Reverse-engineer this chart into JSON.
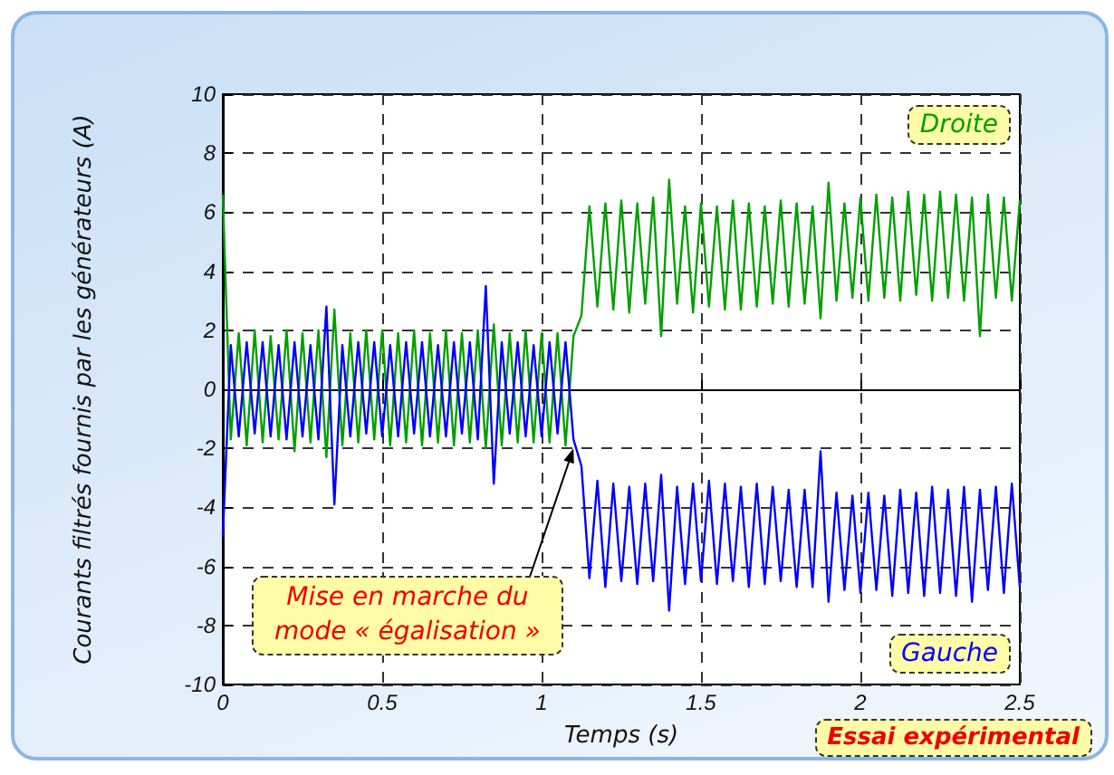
{
  "chart_data": {
    "type": "line",
    "xlabel": "Temps (s)",
    "ylabel": "Courants filtrés fournis par les générateurs (A)",
    "x": [
      0,
      0.025,
      0.05,
      0.075,
      0.1,
      0.125,
      0.15,
      0.175,
      0.2,
      0.225,
      0.25,
      0.275,
      0.3,
      0.325,
      0.35,
      0.375,
      0.4,
      0.425,
      0.45,
      0.475,
      0.5,
      0.525,
      0.55,
      0.575,
      0.6,
      0.625,
      0.65,
      0.675,
      0.7,
      0.725,
      0.75,
      0.775,
      0.8,
      0.825,
      0.85,
      0.875,
      0.9,
      0.925,
      0.95,
      0.975,
      1,
      1.025,
      1.05,
      1.075,
      1.1,
      1.125,
      1.15,
      1.175,
      1.2,
      1.225,
      1.25,
      1.275,
      1.3,
      1.325,
      1.35,
      1.375,
      1.4,
      1.425,
      1.45,
      1.475,
      1.5,
      1.525,
      1.55,
      1.575,
      1.6,
      1.625,
      1.65,
      1.675,
      1.7,
      1.725,
      1.75,
      1.775,
      1.8,
      1.825,
      1.85,
      1.875,
      1.9,
      1.925,
      1.95,
      1.975,
      2,
      2.025,
      2.05,
      2.075,
      2.1,
      2.125,
      2.15,
      2.175,
      2.2,
      2.225,
      2.25,
      2.275,
      2.3,
      2.325,
      2.35,
      2.375,
      2.4,
      2.425,
      2.45,
      2.475,
      2.5
    ],
    "series": [
      {
        "name": "Droite",
        "color": "#00a000",
        "values": [
          6.6,
          -1.7,
          1.9,
          -1.9,
          2.0,
          -1.8,
          1.8,
          -1.7,
          2.0,
          -2.1,
          1.9,
          -1.8,
          2.0,
          -2.3,
          2.7,
          -1.9,
          1.9,
          -1.8,
          2.0,
          -1.7,
          2.0,
          -1.9,
          1.9,
          -1.8,
          2.0,
          -1.9,
          1.9,
          -1.8,
          2.0,
          -1.9,
          1.9,
          -1.8,
          2.0,
          -2.0,
          2.2,
          -1.9,
          1.9,
          -1.8,
          2.0,
          -1.8,
          1.9,
          -1.8,
          1.9,
          -1.9,
          1.8,
          2.5,
          6.2,
          2.8,
          6.3,
          2.7,
          6.4,
          2.6,
          6.3,
          2.9,
          6.5,
          1.8,
          7.1,
          2.9,
          6.2,
          2.6,
          6.3,
          2.8,
          6.2,
          2.7,
          6.4,
          2.7,
          6.3,
          2.8,
          6.2,
          2.9,
          6.4,
          2.8,
          6.3,
          2.9,
          6.2,
          2.4,
          7.0,
          3.0,
          6.3,
          3.1,
          6.5,
          3.0,
          6.6,
          3.1,
          6.5,
          3.0,
          6.7,
          3.2,
          6.6,
          3.0,
          6.7,
          3.1,
          6.6,
          3.0,
          6.5,
          1.8,
          6.6,
          3.1,
          6.5,
          3.0,
          6.4
        ]
      },
      {
        "name": "Gauche",
        "color": "#0000ff",
        "values": [
          -5.0,
          1.5,
          -1.6,
          1.6,
          -1.5,
          1.6,
          -1.6,
          1.5,
          -1.7,
          1.6,
          -1.6,
          1.5,
          -1.7,
          2.8,
          -3.9,
          1.5,
          -1.6,
          1.6,
          -1.5,
          1.6,
          -1.6,
          1.5,
          -1.6,
          1.6,
          -1.5,
          1.6,
          -1.6,
          1.5,
          -1.6,
          1.6,
          -1.5,
          1.6,
          -1.7,
          3.5,
          -3.2,
          1.6,
          -1.5,
          1.6,
          -1.6,
          1.5,
          -1.6,
          1.6,
          -1.5,
          1.6,
          -1.7,
          -2.6,
          -6.4,
          -3.1,
          -6.7,
          -3.2,
          -6.5,
          -3.3,
          -6.6,
          -3.2,
          -6.5,
          -2.9,
          -7.5,
          -3.3,
          -6.6,
          -3.2,
          -6.5,
          -3.1,
          -6.6,
          -3.2,
          -6.5,
          -3.3,
          -6.7,
          -3.2,
          -6.6,
          -3.3,
          -6.5,
          -3.4,
          -6.7,
          -3.4,
          -6.7,
          -2.1,
          -7.2,
          -3.5,
          -6.8,
          -3.6,
          -6.9,
          -3.5,
          -6.8,
          -3.6,
          -7.0,
          -3.4,
          -6.9,
          -3.5,
          -7.0,
          -3.3,
          -6.9,
          -3.4,
          -7.0,
          -3.3,
          -7.2,
          -3.4,
          -6.8,
          -3.3,
          -6.9,
          -3.2,
          -6.7
        ]
      }
    ],
    "xlim": [
      0,
      2.5
    ],
    "xticks": [
      0,
      0.5,
      1,
      1.5,
      2,
      2.5
    ],
    "ylim": [
      -10,
      10
    ],
    "yticks": [
      -10,
      -8,
      -6,
      -4,
      -2,
      0,
      2,
      4,
      6,
      8,
      10
    ],
    "grid": true,
    "legend": false,
    "marker": "none",
    "line_style": "solid",
    "annotations": [
      {
        "text": "Mise en marche du mode « égalisation »",
        "x": 1.1,
        "y": -2
      },
      "Essai expérimental"
    ]
  }
}
